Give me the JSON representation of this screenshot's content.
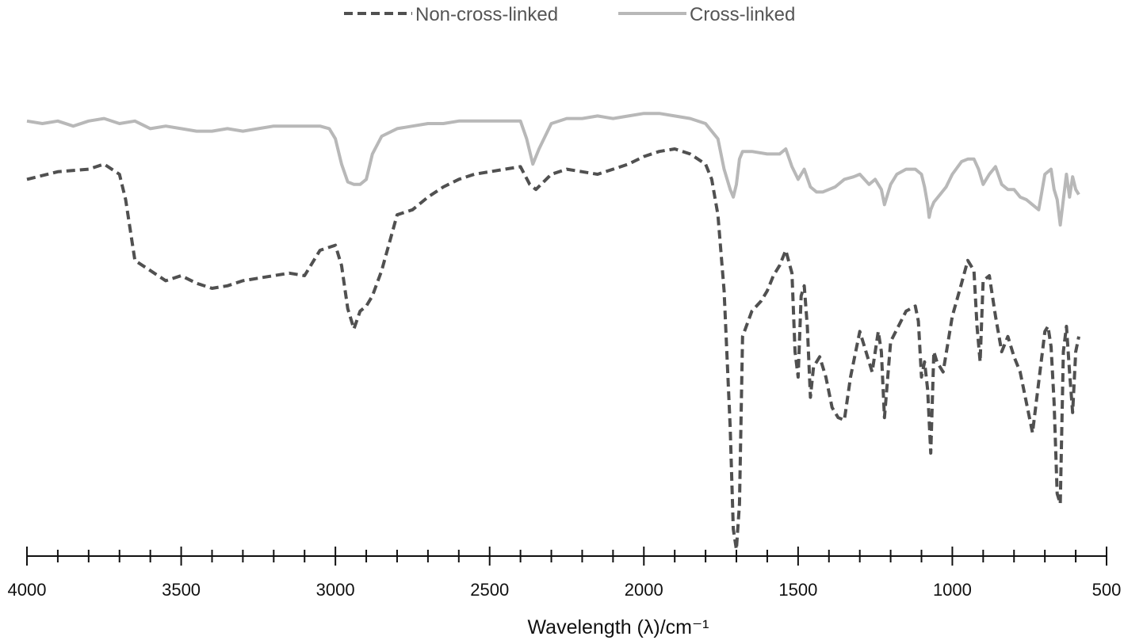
{
  "chart_data": {
    "type": "line",
    "title": "",
    "xlabel": "Wavelength (λ)/cm⁻¹",
    "ylabel": "",
    "xlim": [
      4000,
      500
    ],
    "x_reversed": true,
    "ylim": [
      0,
      100
    ],
    "y_axis_shown": false,
    "grid": false,
    "legend_position": "top-center",
    "x_ticks": [
      4000,
      3500,
      3000,
      2500,
      2000,
      1500,
      1000,
      500
    ],
    "x_tick_labels": [
      "4000",
      "3500",
      "3000",
      "2500",
      "2000",
      "1500",
      "1000",
      "500"
    ],
    "x_minor_step": 100,
    "series": [
      {
        "name": "Non-cross-linked",
        "color": "#505050",
        "style": "dashed",
        "x": [
          4000,
          3900,
          3800,
          3750,
          3700,
          3680,
          3650,
          3600,
          3550,
          3500,
          3450,
          3400,
          3350,
          3300,
          3250,
          3200,
          3150,
          3100,
          3050,
          3000,
          2980,
          2960,
          2940,
          2920,
          2900,
          2880,
          2850,
          2800,
          2750,
          2700,
          2650,
          2600,
          2550,
          2500,
          2450,
          2400,
          2370,
          2350,
          2300,
          2250,
          2200,
          2150,
          2100,
          2050,
          2000,
          1950,
          1900,
          1850,
          1800,
          1780,
          1760,
          1740,
          1720,
          1710,
          1700,
          1690,
          1680,
          1650,
          1620,
          1600,
          1580,
          1560,
          1540,
          1520,
          1510,
          1500,
          1490,
          1480,
          1470,
          1460,
          1450,
          1430,
          1410,
          1390,
          1370,
          1350,
          1330,
          1300,
          1280,
          1260,
          1240,
          1230,
          1220,
          1200,
          1150,
          1120,
          1110,
          1100,
          1090,
          1080,
          1070,
          1060,
          1050,
          1030,
          1000,
          970,
          950,
          930,
          920,
          910,
          900,
          880,
          860,
          840,
          820,
          800,
          780,
          760,
          740,
          720,
          700,
          690,
          680,
          670,
          660,
          650,
          640,
          630,
          620,
          610,
          600,
          590
        ],
        "y": [
          74.0,
          75.5,
          76.0,
          77.0,
          75.0,
          70.0,
          58.0,
          56.0,
          54.0,
          55.0,
          53.5,
          52.5,
          53.0,
          54.0,
          54.5,
          55.0,
          55.5,
          55.0,
          60.0,
          61.0,
          57.0,
          48.5,
          44.5,
          48.0,
          49.0,
          51.0,
          56.0,
          67.0,
          68.0,
          70.5,
          72.5,
          74.0,
          75.0,
          75.5,
          76.0,
          76.5,
          73.0,
          72.0,
          75.0,
          76.0,
          75.5,
          75.0,
          76.0,
          77.0,
          78.5,
          79.5,
          80.0,
          79.0,
          77.0,
          74.0,
          67.0,
          52.0,
          25.0,
          5.0,
          1.0,
          10.0,
          43.0,
          48.0,
          50.0,
          52.0,
          55.0,
          57.0,
          60.0,
          55.5,
          40.0,
          35.0,
          51.0,
          53.0,
          45.0,
          31.0,
          37.0,
          39.0,
          35.0,
          29.0,
          27.0,
          26.5,
          35.0,
          44.0,
          40.0,
          36.0,
          44.0,
          40.0,
          27.0,
          42.0,
          48.0,
          49.0,
          46.0,
          35.0,
          38.0,
          32.5,
          20.0,
          40.0,
          38.0,
          36.0,
          47.0,
          53.5,
          58.0,
          56.0,
          45.0,
          38.0,
          54.0,
          55.0,
          47.0,
          40.0,
          43.0,
          39.0,
          36.0,
          30.0,
          24.0,
          34.0,
          44.0,
          45.0,
          41.0,
          30.0,
          12.0,
          10.0,
          40.0,
          45.0,
          36.0,
          28.0,
          40.0,
          43.0
        ]
      },
      {
        "name": "Cross-linked",
        "color": "#b8b8b8",
        "style": "solid",
        "x": [
          4000,
          3950,
          3900,
          3850,
          3800,
          3750,
          3700,
          3650,
          3600,
          3550,
          3500,
          3450,
          3400,
          3350,
          3300,
          3250,
          3200,
          3150,
          3100,
          3050,
          3020,
          3000,
          2980,
          2960,
          2940,
          2920,
          2900,
          2880,
          2850,
          2800,
          2750,
          2700,
          2650,
          2600,
          2550,
          2500,
          2450,
          2400,
          2380,
          2360,
          2340,
          2300,
          2250,
          2200,
          2150,
          2100,
          2050,
          2000,
          1950,
          1900,
          1850,
          1800,
          1760,
          1740,
          1720,
          1710,
          1700,
          1690,
          1680,
          1650,
          1600,
          1560,
          1540,
          1520,
          1500,
          1480,
          1460,
          1440,
          1420,
          1400,
          1380,
          1350,
          1320,
          1300,
          1270,
          1250,
          1230,
          1220,
          1200,
          1180,
          1150,
          1120,
          1100,
          1090,
          1080,
          1075,
          1070,
          1060,
          1040,
          1020,
          1000,
          970,
          950,
          930,
          915,
          900,
          880,
          860,
          840,
          820,
          800,
          780,
          760,
          740,
          720,
          700,
          680,
          670,
          660,
          650,
          640,
          630,
          620,
          610,
          600,
          590
        ],
        "y": [
          85.5,
          85.0,
          85.5,
          84.5,
          85.5,
          86.0,
          85.0,
          85.5,
          84.0,
          84.5,
          84.0,
          83.5,
          83.5,
          84.0,
          83.5,
          84.0,
          84.5,
          84.5,
          84.5,
          84.5,
          84.0,
          82.0,
          77.0,
          73.5,
          73.0,
          73.0,
          74.0,
          79.0,
          82.5,
          84.0,
          84.5,
          85.0,
          85.0,
          85.5,
          85.5,
          85.5,
          85.5,
          85.5,
          82.0,
          77.0,
          80.0,
          85.0,
          86.0,
          86.0,
          86.5,
          86.0,
          86.5,
          87.0,
          87.0,
          86.5,
          86.0,
          85.0,
          82.0,
          76.0,
          72.0,
          70.5,
          73.0,
          78.0,
          79.5,
          79.5,
          79.0,
          79.0,
          80.0,
          76.5,
          74.0,
          76.0,
          72.5,
          71.5,
          71.5,
          72.0,
          72.5,
          74.0,
          74.5,
          75.0,
          73.0,
          74.0,
          72.0,
          69.0,
          73.0,
          75.0,
          76.0,
          76.0,
          75.0,
          72.5,
          69.0,
          66.5,
          68.0,
          69.5,
          71.0,
          72.5,
          75.0,
          77.5,
          78.0,
          78.0,
          76.0,
          73.0,
          75.0,
          76.5,
          73.0,
          72.0,
          72.0,
          70.5,
          70.0,
          69.0,
          68.0,
          75.0,
          76.0,
          72.0,
          70.0,
          65.0,
          70.0,
          75.0,
          70.5,
          74.5,
          72.0,
          71.0
        ]
      }
    ]
  }
}
